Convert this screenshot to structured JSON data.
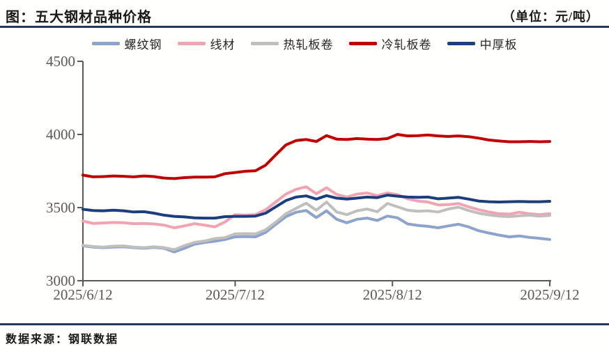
{
  "header": {
    "title": "图：五大钢材品种价格",
    "unit": "（单位：元/吨）"
  },
  "footer": {
    "source": "数据来源：钢联数据"
  },
  "colors": {
    "accent_rule": "#1f3864",
    "axis": "#595959",
    "tick_text": "#595959",
    "background": "#fffefa"
  },
  "chart_data": {
    "type": "line",
    "title": "五大钢材品种价格",
    "unit": "元/吨",
    "grid": false,
    "legend_position": "top",
    "y_axis": {
      "ticks": [
        3000,
        3500,
        4000,
        4500
      ],
      "range": [
        3000,
        4500
      ]
    },
    "x_axis": {
      "tick_labels": [
        "2025/6/12",
        "2025/7/12",
        "2025/8/12",
        "2025/9/12"
      ],
      "tick_days": [
        0,
        30,
        61,
        92
      ],
      "range_days": [
        0,
        92
      ]
    },
    "sample_day_offsets": [
      0,
      2,
      4,
      6,
      8,
      10,
      12,
      14,
      16,
      18,
      20,
      22,
      24,
      26,
      28,
      30,
      32,
      34,
      36,
      38,
      40,
      42,
      44,
      46,
      48,
      50,
      52,
      54,
      56,
      58,
      60,
      62,
      64,
      66,
      68,
      70,
      72,
      74,
      76,
      78,
      80,
      82,
      84,
      86,
      88,
      90,
      92
    ],
    "series": [
      {
        "name": "螺纹钢",
        "key": "rebar",
        "color": "#8ca3cc",
        "values": [
          3238,
          3230,
          3226,
          3230,
          3232,
          3226,
          3222,
          3228,
          3222,
          3196,
          3222,
          3250,
          3262,
          3270,
          3282,
          3300,
          3302,
          3300,
          3330,
          3385,
          3438,
          3468,
          3480,
          3432,
          3478,
          3420,
          3396,
          3420,
          3428,
          3412,
          3442,
          3430,
          3388,
          3378,
          3372,
          3362,
          3375,
          3386,
          3368,
          3342,
          3326,
          3312,
          3300,
          3306,
          3296,
          3290,
          3282
        ]
      },
      {
        "name": "线材",
        "key": "wire-rod",
        "color": "#f2a3b3",
        "values": [
          3408,
          3392,
          3395,
          3398,
          3396,
          3390,
          3392,
          3388,
          3380,
          3362,
          3375,
          3390,
          3380,
          3368,
          3402,
          3452,
          3448,
          3452,
          3485,
          3538,
          3592,
          3625,
          3642,
          3595,
          3635,
          3590,
          3572,
          3592,
          3600,
          3582,
          3600,
          3588,
          3560,
          3545,
          3538,
          3518,
          3520,
          3528,
          3505,
          3485,
          3470,
          3458,
          3455,
          3468,
          3458,
          3452,
          3458
        ]
      },
      {
        "name": "热轧板卷",
        "key": "hot-rolled-coil",
        "color": "#bfbfbf",
        "values": [
          3242,
          3234,
          3230,
          3236,
          3238,
          3230,
          3226,
          3232,
          3226,
          3212,
          3240,
          3262,
          3272,
          3288,
          3295,
          3320,
          3322,
          3320,
          3348,
          3400,
          3458,
          3495,
          3530,
          3482,
          3538,
          3470,
          3452,
          3478,
          3490,
          3472,
          3528,
          3505,
          3482,
          3475,
          3478,
          3470,
          3490,
          3503,
          3480,
          3462,
          3450,
          3442,
          3438,
          3444,
          3448,
          3442,
          3446
        ]
      },
      {
        "name": "冷轧板卷",
        "key": "cold-rolled-coil",
        "color": "#c00000",
        "values": [
          3722,
          3710,
          3712,
          3716,
          3714,
          3710,
          3716,
          3712,
          3702,
          3698,
          3705,
          3708,
          3708,
          3710,
          3732,
          3740,
          3748,
          3752,
          3790,
          3860,
          3928,
          3958,
          3965,
          3952,
          3992,
          3968,
          3965,
          3972,
          3968,
          3965,
          3972,
          4000,
          3990,
          3992,
          3996,
          3990,
          3986,
          3990,
          3985,
          3975,
          3962,
          3955,
          3950,
          3950,
          3952,
          3950,
          3952
        ]
      },
      {
        "name": "中厚板",
        "key": "heavy-plate",
        "color": "#1a3e7e",
        "values": [
          3488,
          3480,
          3478,
          3482,
          3478,
          3470,
          3472,
          3462,
          3448,
          3440,
          3436,
          3430,
          3428,
          3428,
          3438,
          3440,
          3440,
          3442,
          3462,
          3505,
          3548,
          3572,
          3580,
          3558,
          3582,
          3565,
          3558,
          3565,
          3572,
          3568,
          3585,
          3578,
          3572,
          3570,
          3572,
          3560,
          3565,
          3570,
          3558,
          3545,
          3540,
          3538,
          3540,
          3542,
          3540,
          3540,
          3543
        ]
      }
    ]
  }
}
